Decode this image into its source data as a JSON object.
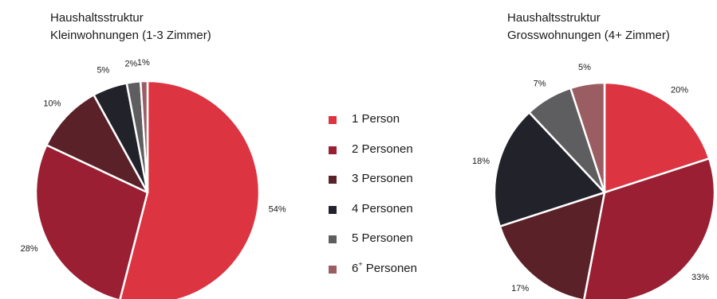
{
  "colors": [
    "#dc3440",
    "#9a1f33",
    "#5a2228",
    "#22222a",
    "#5e5e60",
    "#9a5e62"
  ],
  "legend": {
    "items": [
      {
        "label": "1 Person",
        "sup": ""
      },
      {
        "label": "2 Personen",
        "sup": ""
      },
      {
        "label": "3 Personen",
        "sup": ""
      },
      {
        "label": "4 Personen",
        "sup": ""
      },
      {
        "label": "5 Personen",
        "sup": ""
      },
      {
        "label": "",
        "sup": "+",
        "prefix": "6",
        "suffix": " Personen"
      }
    ]
  },
  "chart_data": [
    {
      "type": "pie",
      "title": [
        "Haushaltsstruktur",
        "Kleinwohnungen (1-3 Zimmer)"
      ],
      "categories": [
        "1 Person",
        "2 Personen",
        "3 Personen",
        "4 Personen",
        "5 Personen",
        "6+ Personen"
      ],
      "values": [
        54,
        28,
        10,
        5,
        2,
        1
      ],
      "labels": [
        "54%",
        "28%",
        "10%",
        "5%",
        "2%",
        "1%"
      ]
    },
    {
      "type": "pie",
      "title": [
        "Haushaltsstruktur",
        "Grosswohnungen (4+ Zimmer)"
      ],
      "categories": [
        "1 Person",
        "2 Personen",
        "3 Personen",
        "4 Personen",
        "5 Personen",
        "6+ Personen"
      ],
      "values": [
        20,
        33,
        17,
        18,
        7,
        5
      ],
      "labels": [
        "20%",
        "33%",
        "17%",
        "18%",
        "7%",
        "5%"
      ]
    }
  ]
}
